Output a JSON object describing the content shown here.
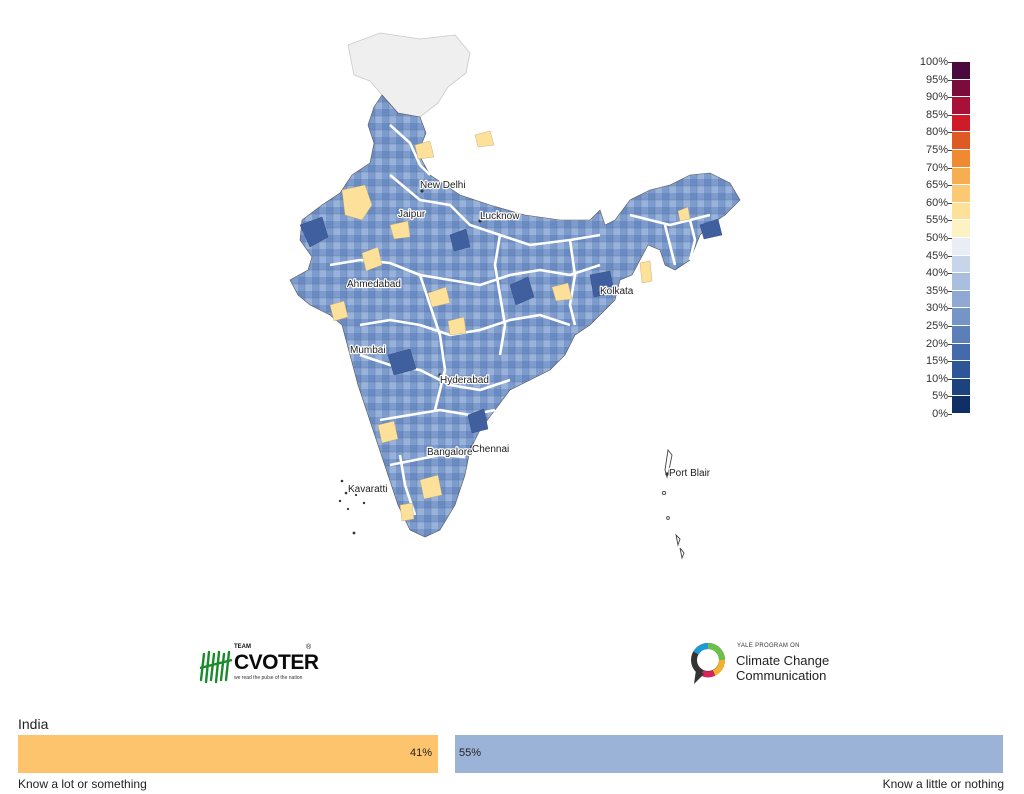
{
  "map": {
    "cities": [
      {
        "name": "New Delhi"
      },
      {
        "name": "Jaipur"
      },
      {
        "name": "Lucknow"
      },
      {
        "name": "Ahmedabad"
      },
      {
        "name": "Kolkata"
      },
      {
        "name": "Mumbai"
      },
      {
        "name": "Hyderabad"
      },
      {
        "name": "Bangalore"
      },
      {
        "name": "Chennai"
      },
      {
        "name": "Kavaratti"
      },
      {
        "name": "Port Blair"
      }
    ],
    "no_data_color": "#efefef",
    "border_color": "#ffffff"
  },
  "legend": {
    "ticks": [
      "100%",
      "95%",
      "90%",
      "85%",
      "80%",
      "75%",
      "70%",
      "65%",
      "60%",
      "55%",
      "50%",
      "45%",
      "40%",
      "35%",
      "30%",
      "25%",
      "20%",
      "15%",
      "10%",
      "5%",
      "0%"
    ],
    "colors": [
      "#4a0a3f",
      "#7a0b3a",
      "#a8103a",
      "#cf1a2a",
      "#de5a22",
      "#ef8a32",
      "#f7ae53",
      "#fbc874",
      "#fde19b",
      "#fdf2c4",
      "#e9eef6",
      "#c6d5ea",
      "#aabfe0",
      "#8fa9d4",
      "#7695c7",
      "#5c7fba",
      "#436aaa",
      "#2e5596",
      "#1d437f",
      "#0f2f66"
    ]
  },
  "logos": {
    "cvoter": {
      "team": "TEAM",
      "name": "CVOTER",
      "tagline": "we read the pulse of the nation",
      "registered": "®"
    },
    "yale": {
      "small": "YALE PROGRAM ON",
      "line1": "Climate Change",
      "line2": "Communication"
    }
  },
  "bar": {
    "title": "India",
    "left": {
      "value": "41%",
      "label": "Know a lot or something",
      "color": "#fdc36d"
    },
    "right": {
      "value": "55%",
      "label": "Know a little or nothing",
      "color": "#9bb3d6"
    }
  }
}
